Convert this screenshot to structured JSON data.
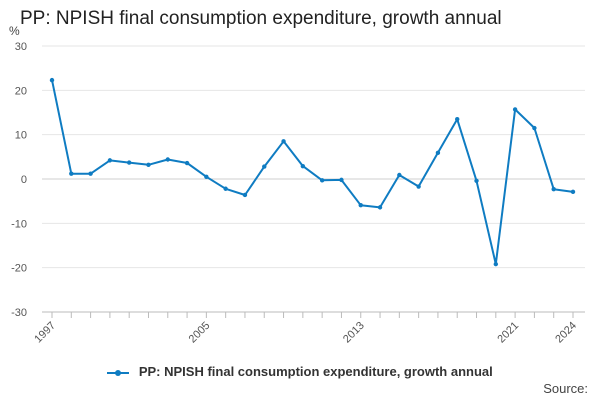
{
  "chart_data": {
    "type": "line",
    "title": "PP: NPISH final consumption expenditure, growth annual",
    "ylabel": "%",
    "xlabel": "",
    "ylim": [
      -30,
      30
    ],
    "yticks": [
      30,
      20,
      10,
      0,
      -10,
      -20,
      -30
    ],
    "x": [
      1997,
      1998,
      1999,
      2000,
      2001,
      2002,
      2003,
      2004,
      2005,
      2006,
      2007,
      2008,
      2009,
      2010,
      2011,
      2012,
      2013,
      2014,
      2015,
      2016,
      2017,
      2018,
      2019,
      2020,
      2021,
      2022,
      2023,
      2024
    ],
    "xticks": [
      1997,
      2005,
      2013,
      2021,
      2024
    ],
    "series": [
      {
        "name": "PP: NPISH final consumption expenditure, growth annual",
        "color": "#0f7cc2",
        "values": [
          22.3,
          1.2,
          1.2,
          4.2,
          3.7,
          3.2,
          4.4,
          3.6,
          0.5,
          -2.2,
          -3.6,
          2.8,
          8.5,
          2.9,
          -0.3,
          -0.2,
          -5.9,
          -6.4,
          0.9,
          -1.7,
          5.9,
          13.5,
          -0.4,
          -19.2,
          15.7,
          11.5,
          -2.3,
          -2.9
        ]
      }
    ],
    "grid": true,
    "legend_position": "bottom"
  },
  "legend": {
    "label": "PP: NPISH final consumption expenditure, growth annual"
  },
  "source": "Source:"
}
